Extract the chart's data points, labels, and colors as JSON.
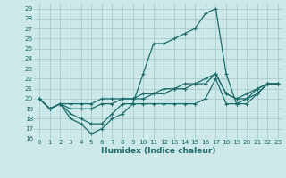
{
  "xlabel": "Humidex (Indice chaleur)",
  "bg_color": "#cce8e8",
  "grid_color": "#aacccc",
  "line_color": "#1a6b6b",
  "xlim": [
    -0.5,
    23.5
  ],
  "ylim": [
    16,
    29.5
  ],
  "yticks": [
    16,
    17,
    18,
    19,
    20,
    21,
    22,
    23,
    24,
    25,
    26,
    27,
    28,
    29
  ],
  "xticks": [
    0,
    1,
    2,
    3,
    4,
    5,
    6,
    7,
    8,
    9,
    10,
    11,
    12,
    13,
    14,
    15,
    16,
    17,
    18,
    19,
    20,
    21,
    22,
    23
  ],
  "series": [
    [
      20.0,
      19.0,
      19.5,
      18.0,
      17.5,
      16.5,
      17.0,
      18.0,
      18.5,
      19.5,
      22.5,
      25.5,
      25.5,
      26.0,
      26.5,
      27.0,
      28.5,
      29.0,
      22.5,
      19.5,
      20.0,
      21.0,
      21.5,
      21.5
    ],
    [
      20.0,
      19.0,
      19.5,
      19.0,
      19.0,
      19.0,
      19.5,
      19.5,
      20.0,
      20.0,
      20.0,
      20.5,
      20.5,
      21.0,
      21.0,
      21.5,
      21.5,
      22.5,
      20.5,
      20.0,
      20.5,
      21.0,
      21.5,
      21.5
    ],
    [
      20.0,
      19.0,
      19.5,
      19.5,
      19.5,
      19.5,
      20.0,
      20.0,
      20.0,
      20.0,
      20.5,
      20.5,
      21.0,
      21.0,
      21.5,
      21.5,
      22.0,
      22.5,
      20.5,
      20.0,
      20.0,
      20.5,
      21.5,
      21.5
    ],
    [
      20.0,
      19.0,
      19.5,
      18.5,
      18.0,
      17.5,
      17.5,
      18.5,
      19.5,
      19.5,
      19.5,
      19.5,
      19.5,
      19.5,
      19.5,
      19.5,
      20.0,
      22.0,
      19.5,
      19.5,
      19.5,
      20.5,
      21.5,
      21.5
    ]
  ]
}
